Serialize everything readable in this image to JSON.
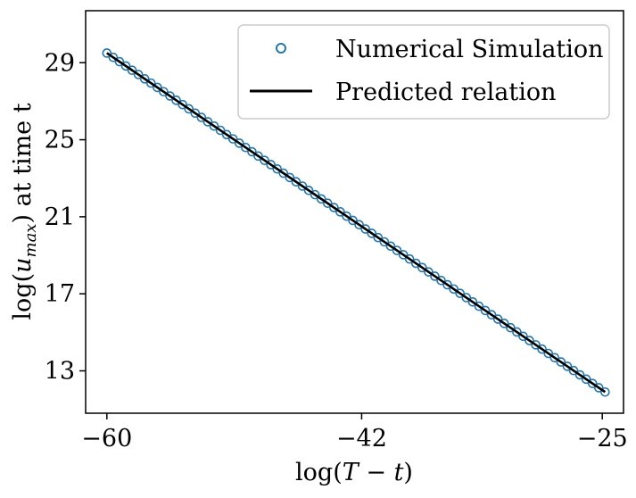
{
  "chart_data": {
    "type": "scatter",
    "title": "",
    "xlabel": "log(T − t)",
    "ylabel": "log(u_max) at time t",
    "ylabel_parts": {
      "prefix": "log(",
      "var": "u",
      "sub": "max",
      "suffix": ") at time t"
    },
    "xlabel_parts": {
      "prefix": "log(",
      "var": "T",
      "op": " − ",
      "var2": "t",
      "suffix": ")"
    },
    "xlim": [
      -61.5,
      -23.5
    ],
    "ylim": [
      10.8,
      31.7
    ],
    "xticks": [
      -60,
      -42,
      -25
    ],
    "xtick_labels": [
      "−60",
      "−42",
      "−25"
    ],
    "yticks": [
      13,
      17,
      21,
      25,
      29
    ],
    "ytick_labels": [
      "13",
      "17",
      "21",
      "25",
      "29"
    ],
    "grid": false,
    "legend_position": "top-right",
    "series": [
      {
        "name": "Numerical Simulation",
        "kind": "markers",
        "marker": "open-circle",
        "color": "#1f77b4",
        "x_start": -60,
        "x_end": -24.8,
        "n_points": 80,
        "slope": -0.5,
        "intercept": -0.5
      },
      {
        "name": "Predicted relation",
        "kind": "line",
        "color": "#000000",
        "x": [
          -60,
          -24.8
        ],
        "y": [
          29.5,
          11.9
        ]
      }
    ]
  }
}
